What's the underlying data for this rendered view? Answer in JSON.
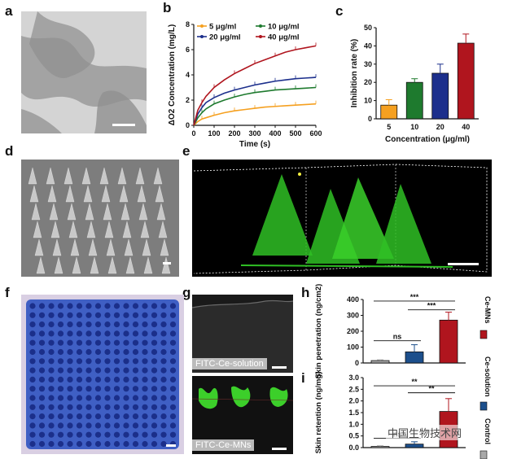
{
  "panels": {
    "a": "a",
    "b": "b",
    "c": "c",
    "d": "d",
    "e": "e",
    "f": "f",
    "g": "g",
    "h": "h",
    "i": "i"
  },
  "colors": {
    "c5": "#f5a020",
    "c10": "#1e7a2e",
    "c20": "#1c2f8c",
    "c40": "#b0151e",
    "gray": "#a8a8a8",
    "green": "#3ccf2a",
    "blue": "#2c4fb5"
  },
  "g_captions": {
    "top": "FITC-Ce-solution",
    "bottom": "FITC-Ce-MNs"
  },
  "watermark": "中国生物技术网",
  "chart_data": [
    {
      "id": "b",
      "type": "line",
      "xlabel": "Time (s)",
      "ylabel": "ΔO2 Concentration (mg/L)",
      "xlim": [
        0,
        600
      ],
      "ylim": [
        0,
        8
      ],
      "xticks": [
        0,
        100,
        200,
        300,
        400,
        500,
        600
      ],
      "yticks": [
        0,
        2,
        4,
        6,
        8
      ],
      "legend_position": "top-left",
      "series": [
        {
          "name": "5 μg/ml",
          "color": "#f5a020",
          "x": [
            0,
            20,
            40,
            60,
            100,
            150,
            200,
            250,
            300,
            350,
            400,
            450,
            500,
            550,
            600
          ],
          "y": [
            0,
            0.3,
            0.5,
            0.6,
            0.8,
            1.0,
            1.15,
            1.25,
            1.35,
            1.45,
            1.5,
            1.55,
            1.6,
            1.65,
            1.7
          ]
        },
        {
          "name": "10 μg/ml",
          "color": "#1e7a2e",
          "x": [
            0,
            20,
            40,
            60,
            100,
            150,
            200,
            250,
            300,
            350,
            400,
            450,
            500,
            550,
            600
          ],
          "y": [
            0,
            0.6,
            1.0,
            1.3,
            1.7,
            2.0,
            2.25,
            2.45,
            2.6,
            2.7,
            2.8,
            2.85,
            2.9,
            2.95,
            3.0
          ]
        },
        {
          "name": "20 μg/ml",
          "color": "#1c2f8c",
          "x": [
            0,
            20,
            40,
            60,
            100,
            150,
            200,
            250,
            300,
            350,
            400,
            450,
            500,
            550,
            600
          ],
          "y": [
            0,
            0.9,
            1.4,
            1.8,
            2.2,
            2.55,
            2.8,
            3.0,
            3.2,
            3.35,
            3.5,
            3.6,
            3.7,
            3.75,
            3.8
          ]
        },
        {
          "name": "40 μg/ml",
          "color": "#b0151e",
          "x": [
            0,
            20,
            40,
            60,
            100,
            150,
            200,
            250,
            300,
            350,
            400,
            450,
            500,
            550,
            600
          ],
          "y": [
            0,
            1.2,
            1.8,
            2.3,
            3.0,
            3.6,
            4.1,
            4.5,
            4.9,
            5.2,
            5.5,
            5.8,
            6.0,
            6.15,
            6.3
          ]
        }
      ]
    },
    {
      "id": "c",
      "type": "bar",
      "xlabel": "Concentration (μg/ml)",
      "ylabel": "Inhibition rate (%)",
      "ylim": [
        0,
        50
      ],
      "yticks": [
        0,
        10,
        20,
        30,
        40,
        50
      ],
      "categories": [
        "5",
        "10",
        "20",
        "40"
      ],
      "values": [
        7.5,
        20,
        25,
        41.5
      ],
      "errors": [
        3,
        2,
        5,
        5
      ],
      "colors": [
        "#f5a020",
        "#1e7a2e",
        "#1c2f8c",
        "#b0151e"
      ]
    },
    {
      "id": "h",
      "type": "bar",
      "ylabel": "Skin penetration (ng/cm2)",
      "ylim": [
        0,
        400
      ],
      "yticks": [
        0,
        100,
        200,
        300,
        400
      ],
      "categories": [
        "Control",
        "Ce-solution",
        "Ce-MNs"
      ],
      "values": [
        15,
        70,
        270
      ],
      "errors": [
        5,
        45,
        50
      ],
      "colors": [
        "#a8a8a8",
        "#1c4f8c",
        "#b0151e"
      ],
      "significance": [
        {
          "from": 0,
          "to": 2,
          "label": "***"
        },
        {
          "from": 1,
          "to": 2,
          "label": "***"
        },
        {
          "from": 0,
          "to": 1,
          "label": "ns"
        }
      ]
    },
    {
      "id": "i",
      "type": "bar",
      "ylabel": "Skin retention (ng/mg)",
      "ylim": [
        0,
        3.0
      ],
      "yticks": [
        0.0,
        0.5,
        1.0,
        1.5,
        2.0,
        2.5,
        3.0
      ],
      "categories": [
        "Control",
        "Ce-solution",
        "Ce-MNs"
      ],
      "values": [
        0.05,
        0.15,
        1.55
      ],
      "errors": [
        0.03,
        0.1,
        0.55
      ],
      "colors": [
        "#a8a8a8",
        "#1c4f8c",
        "#b0151e"
      ],
      "significance": [
        {
          "from": 0,
          "to": 2,
          "label": "**"
        },
        {
          "from": 1,
          "to": 2,
          "label": "**"
        },
        {
          "from": 0,
          "to": 1,
          "label": "ns"
        }
      ]
    }
  ],
  "legend_hi": [
    "Ce-MNs",
    "Ce-solution",
    "Control"
  ]
}
